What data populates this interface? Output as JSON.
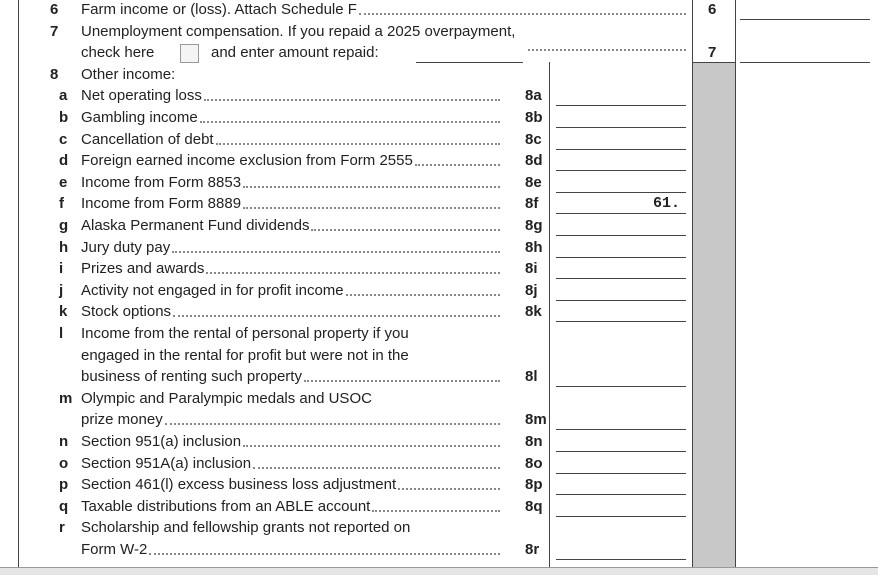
{
  "line6": {
    "number": "6",
    "text": "Farm income or (loss). Attach Schedule F",
    "box": "6"
  },
  "line7": {
    "number": "7",
    "text": "Unemployment compensation. If you repaid a 2025 overpayment,",
    "check_label": "check here",
    "repaid_label": "and enter amount repaid:",
    "box": "7"
  },
  "line8": {
    "number": "8",
    "text": "Other income:",
    "items": [
      {
        "letter": "a",
        "lines": [
          "Net operating loss"
        ],
        "box": "8a"
      },
      {
        "letter": "b",
        "lines": [
          "Gambling income"
        ],
        "box": "8b"
      },
      {
        "letter": "c",
        "lines": [
          "Cancellation of debt"
        ],
        "box": "8c"
      },
      {
        "letter": "d",
        "lines": [
          "Foreign earned income exclusion from Form 2555"
        ],
        "box": "8d"
      },
      {
        "letter": "e",
        "lines": [
          "Income from Form 8853"
        ],
        "box": "8e"
      },
      {
        "letter": "f",
        "lines": [
          "Income from Form 8889"
        ],
        "box": "8f",
        "value": "61."
      },
      {
        "letter": "g",
        "lines": [
          "Alaska Permanent Fund dividends"
        ],
        "box": "8g"
      },
      {
        "letter": "h",
        "lines": [
          "Jury duty pay"
        ],
        "box": "8h"
      },
      {
        "letter": "i",
        "lines": [
          "Prizes and awards"
        ],
        "box": "8i"
      },
      {
        "letter": "j",
        "lines": [
          "Activity not engaged in for profit income"
        ],
        "box": "8j"
      },
      {
        "letter": "k",
        "lines": [
          "Stock options"
        ],
        "box": "8k"
      },
      {
        "letter": "l",
        "lines": [
          "Income from the rental of personal property if you",
          "engaged in the rental for profit but were not in the",
          "business of renting such property"
        ],
        "box": "8l"
      },
      {
        "letter": "m",
        "lines": [
          "Olympic and Paralympic medals and USOC",
          "prize money"
        ],
        "box": "8m"
      },
      {
        "letter": "n",
        "lines": [
          "Section 951(a) inclusion"
        ],
        "box": "8n"
      },
      {
        "letter": "o",
        "lines": [
          "Section 951A(a) inclusion"
        ],
        "box": "8o"
      },
      {
        "letter": "p",
        "lines": [
          "Section 461(l) excess business loss adjustment"
        ],
        "box": "8p"
      },
      {
        "letter": "q",
        "lines": [
          "Taxable distributions from an ABLE account"
        ],
        "box": "8q"
      },
      {
        "letter": "r",
        "lines": [
          "Scholarship and fellowship grants not reported on",
          "Form W-2"
        ],
        "box": "8r"
      }
    ]
  }
}
